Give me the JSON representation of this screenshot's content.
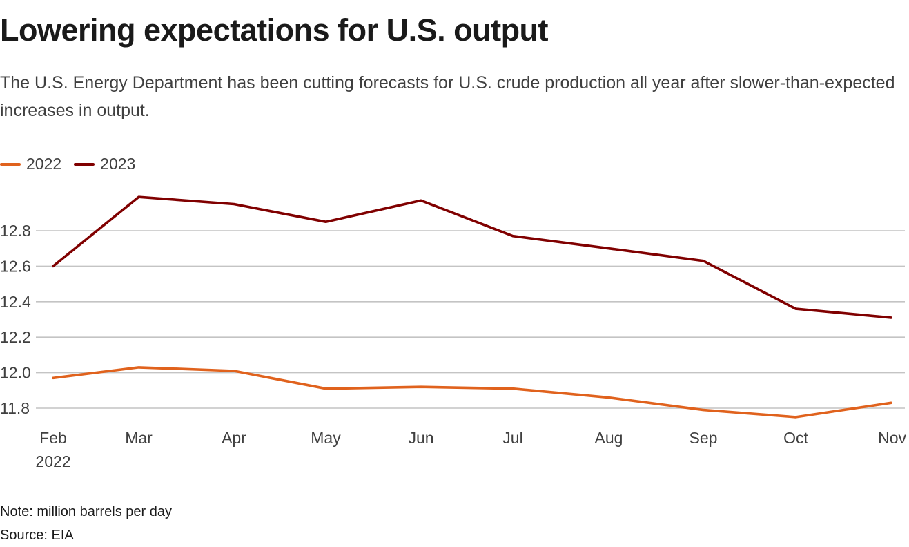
{
  "header": {
    "title": "Lowering expectations for U.S. output",
    "subtitle": "The U.S. Energy Department has been cutting forecasts for U.S. crude production all year after slower-than-expected increases in output."
  },
  "legend": [
    {
      "label": "2022",
      "color": "#e0621d"
    },
    {
      "label": "2023",
      "color": "#800000"
    }
  ],
  "footer": {
    "note": "Note: million barrels per day",
    "source": "Source: EIA"
  },
  "chart_data": {
    "type": "line",
    "title": "Lowering expectations for U.S. output",
    "subtitle": "The U.S. Energy Department has been cutting forecasts for U.S. crude production all year after slower-than-expected increases in output.",
    "xlabel": "",
    "ylabel": "million barrels per day",
    "x": [
      "Feb",
      "Mar",
      "Apr",
      "May",
      "Jun",
      "Jul",
      "Aug",
      "Sep",
      "Oct",
      "Nov"
    ],
    "x_sublabel": {
      "index": 0,
      "text": "2022"
    },
    "yticks": [
      "11.8",
      "12.0",
      "12.2",
      "12.4",
      "12.6",
      "12.8"
    ],
    "ylim": [
      11.72,
      13.0
    ],
    "grid": true,
    "legend_position": "top-left",
    "series": [
      {
        "name": "2022",
        "color": "#e0621d",
        "values": [
          11.97,
          12.03,
          12.01,
          11.91,
          11.92,
          11.91,
          11.86,
          11.79,
          11.75,
          11.83
        ]
      },
      {
        "name": "2023",
        "color": "#800000",
        "values": [
          12.6,
          12.99,
          12.95,
          12.85,
          12.97,
          12.77,
          12.7,
          12.63,
          12.36,
          12.31
        ]
      }
    ]
  }
}
